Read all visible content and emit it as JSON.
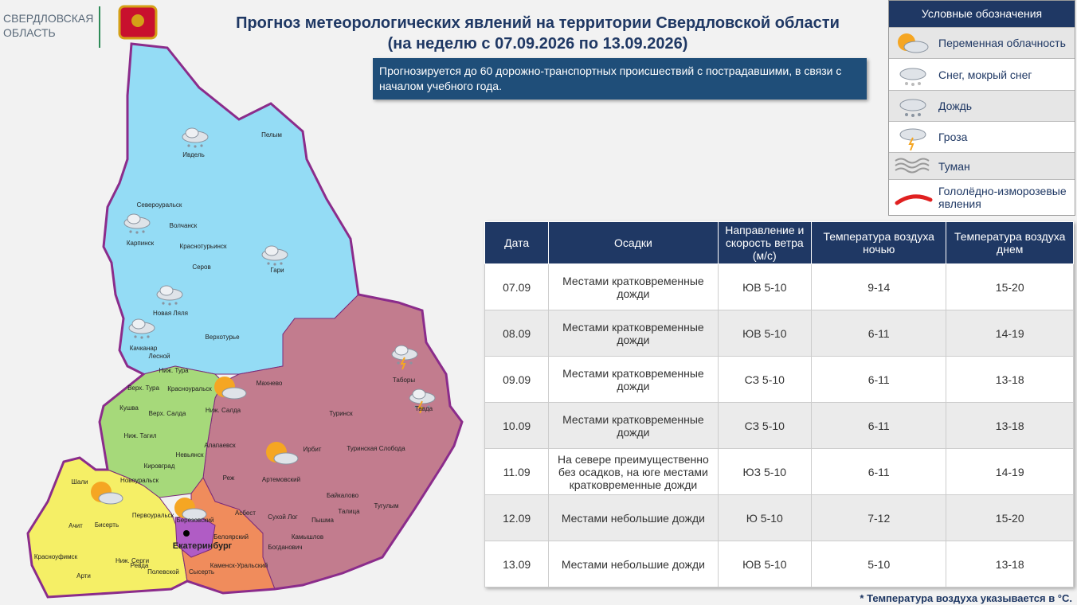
{
  "header": {
    "region": [
      "СВЕРДЛОВСКАЯ",
      "ОБЛАСТЬ"
    ],
    "title": [
      "Прогноз метеорологических явлений на территории Свердловской области",
      "(на неделю с 07.09.2026 по 13.09.2026)"
    ],
    "notice": "Прогнозируется до 60 дорожно-транспортных происшествий с пострадавшими, в связи с началом учебного года."
  },
  "legend": {
    "title": "Условные обозначения",
    "items": [
      "Переменная облачность",
      "Снег, мокрый снег",
      "Дождь",
      "Гроза",
      "Туман",
      "Гололёдно-изморозевые явления"
    ]
  },
  "table": {
    "columns": [
      "Дата",
      "Осадки",
      "Направление и скорость ветра (м/с)",
      "Температура воздуха ночью",
      "Температура воздуха днем"
    ],
    "rows": [
      [
        "07.09",
        "Местами кратковременные дожди",
        "ЮВ 5-10",
        "9-14",
        "15-20"
      ],
      [
        "08.09",
        "Местами кратковременные дожди",
        "ЮВ 5-10",
        "6-11",
        "14-19"
      ],
      [
        "09.09",
        "Местами кратковременные дожди",
        "СЗ 5-10",
        "6-11",
        "13-18"
      ],
      [
        "10.09",
        "Местами кратковременные дожди",
        "СЗ 5-10",
        "6-11",
        "13-18"
      ],
      [
        "11.09",
        "На севере преимущественно без осадков, на юге местами кратковременные дожди",
        "ЮЗ 5-10",
        "6-11",
        "14-19"
      ],
      [
        "12.09",
        "Местами небольшие дожди",
        "Ю 5-10",
        "7-12",
        "15-20"
      ],
      [
        "13.09",
        "Местами небольшие дожди",
        "ЮВ 5-10",
        "5-10",
        "13-18"
      ]
    ]
  },
  "map": {
    "labels": [
      "Пелым",
      "Ивдель",
      "Североуральск",
      "Волчанск",
      "Карпинск",
      "Краснотурьинск",
      "Серов",
      "Гари",
      "Новая Ляля",
      "Верхотурье",
      "Качканар",
      "Лесной",
      "Ниж. Тура",
      "Верх. Тура",
      "Красноуральск",
      "Махнево",
      "Таборы",
      "Тавда",
      "Туринск",
      "Кушва",
      "Верх. Салда",
      "Ниж. Салда",
      "Ниж. Тагил",
      "Алапаевск",
      "Невьянск",
      "Ирбит",
      "Туринская Слобода",
      "Кировград",
      "Шали",
      "Новоуральск",
      "Артемовский",
      "Реж",
      "Байкалово",
      "Первоуральск",
      "Березовский",
      "Асбест",
      "Сухой Лог",
      "Талица",
      "Тугулым",
      "Ачит",
      "Бисерть",
      "Екатеринбург",
      "Белоярский",
      "Камышлов",
      "Пышма",
      "Богданович",
      "Красноуфимск",
      "Ниж. Серги",
      "Арти",
      "Ревда",
      "Полевской",
      "Сысерть",
      "Каменск-Уральский"
    ]
  },
  "footnote": "* Температура воздуха указывается в °С."
}
